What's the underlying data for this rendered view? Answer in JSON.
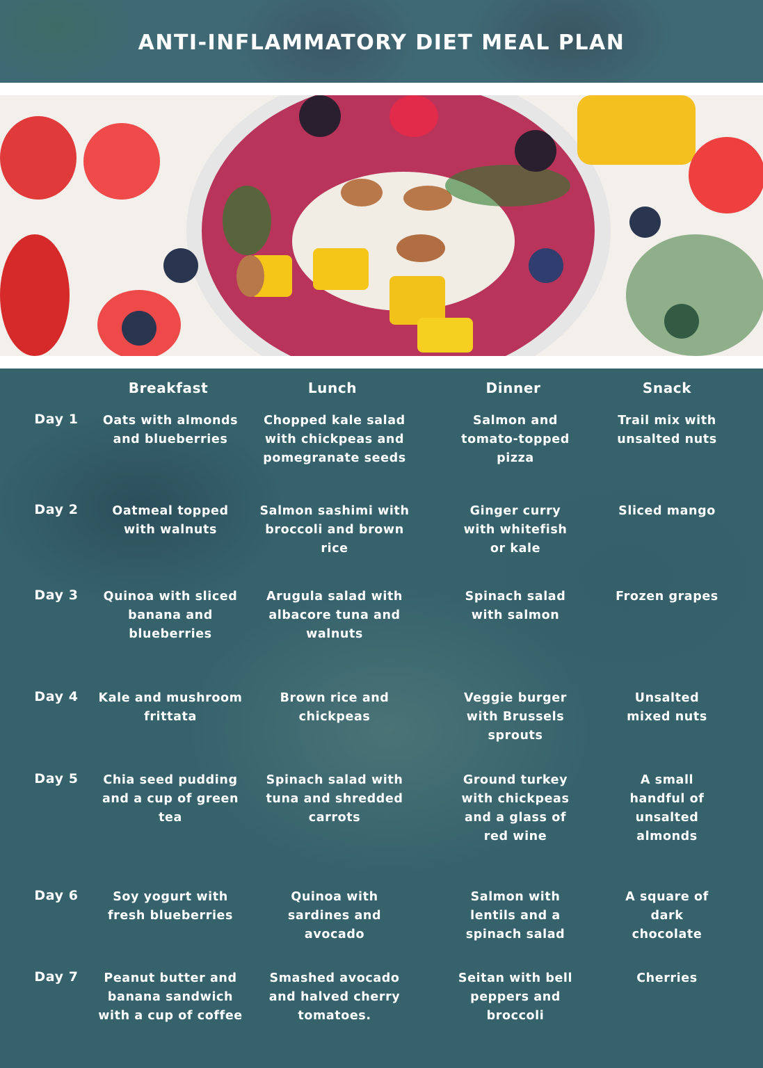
{
  "title": "ANTI-INFLAMMATORY DIET MEAL PLAN",
  "columns": [
    "Breakfast",
    "Lunch",
    "Dinner",
    "Snack"
  ],
  "days": [
    {
      "label": "Day 1",
      "breakfast": "Oats with almonds and blueberries",
      "lunch": "Chopped kale salad with chickpeas and pomegranate seeds",
      "dinner": "Salmon and tomato-topped pizza",
      "snack": "Trail mix with unsalted nuts"
    },
    {
      "label": "Day 2",
      "breakfast": "Oatmeal topped with walnuts",
      "lunch": "Salmon sashimi with broccoli and brown rice",
      "dinner": "Ginger curry with whitefish or kale",
      "snack": "Sliced mango"
    },
    {
      "label": "Day 3",
      "breakfast": "Quinoa with sliced banana and blueberries",
      "lunch": "Arugula salad with albacore tuna and walnuts",
      "dinner": "Spinach salad with salmon",
      "snack": "Frozen grapes"
    },
    {
      "label": "Day 4",
      "breakfast": "Kale and mushroom frittata",
      "lunch": "Brown rice and chickpeas",
      "dinner": "Veggie burger with Brussels sprouts",
      "snack": "Unsalted mixed nuts"
    },
    {
      "label": "Day 5",
      "breakfast": "Chia seed pudding and a cup of green tea",
      "lunch": "Spinach salad with tuna and shredded carrots",
      "dinner": "Ground turkey with chickpeas and a glass of red wine",
      "snack": "A small handful of unsalted almonds"
    },
    {
      "label": "Day 6",
      "breakfast": "Soy yogurt with fresh blueberries",
      "lunch": "Quinoa with sardines and avocado",
      "dinner": "Salmon with lentils and a spinach salad",
      "snack": "A square of dark chocolate"
    },
    {
      "label": "Day 7",
      "breakfast": "Peanut butter and banana sandwich with a cup of coffee",
      "lunch": "Smashed avocado and halved cherry tomatoes.",
      "dinner": "Seitan with bell peppers and broccoli",
      "snack": "Cherries"
    }
  ],
  "colors": {
    "header_bg": "#3f6a75",
    "table_bg": "#36626c",
    "text": "#ffffff"
  }
}
